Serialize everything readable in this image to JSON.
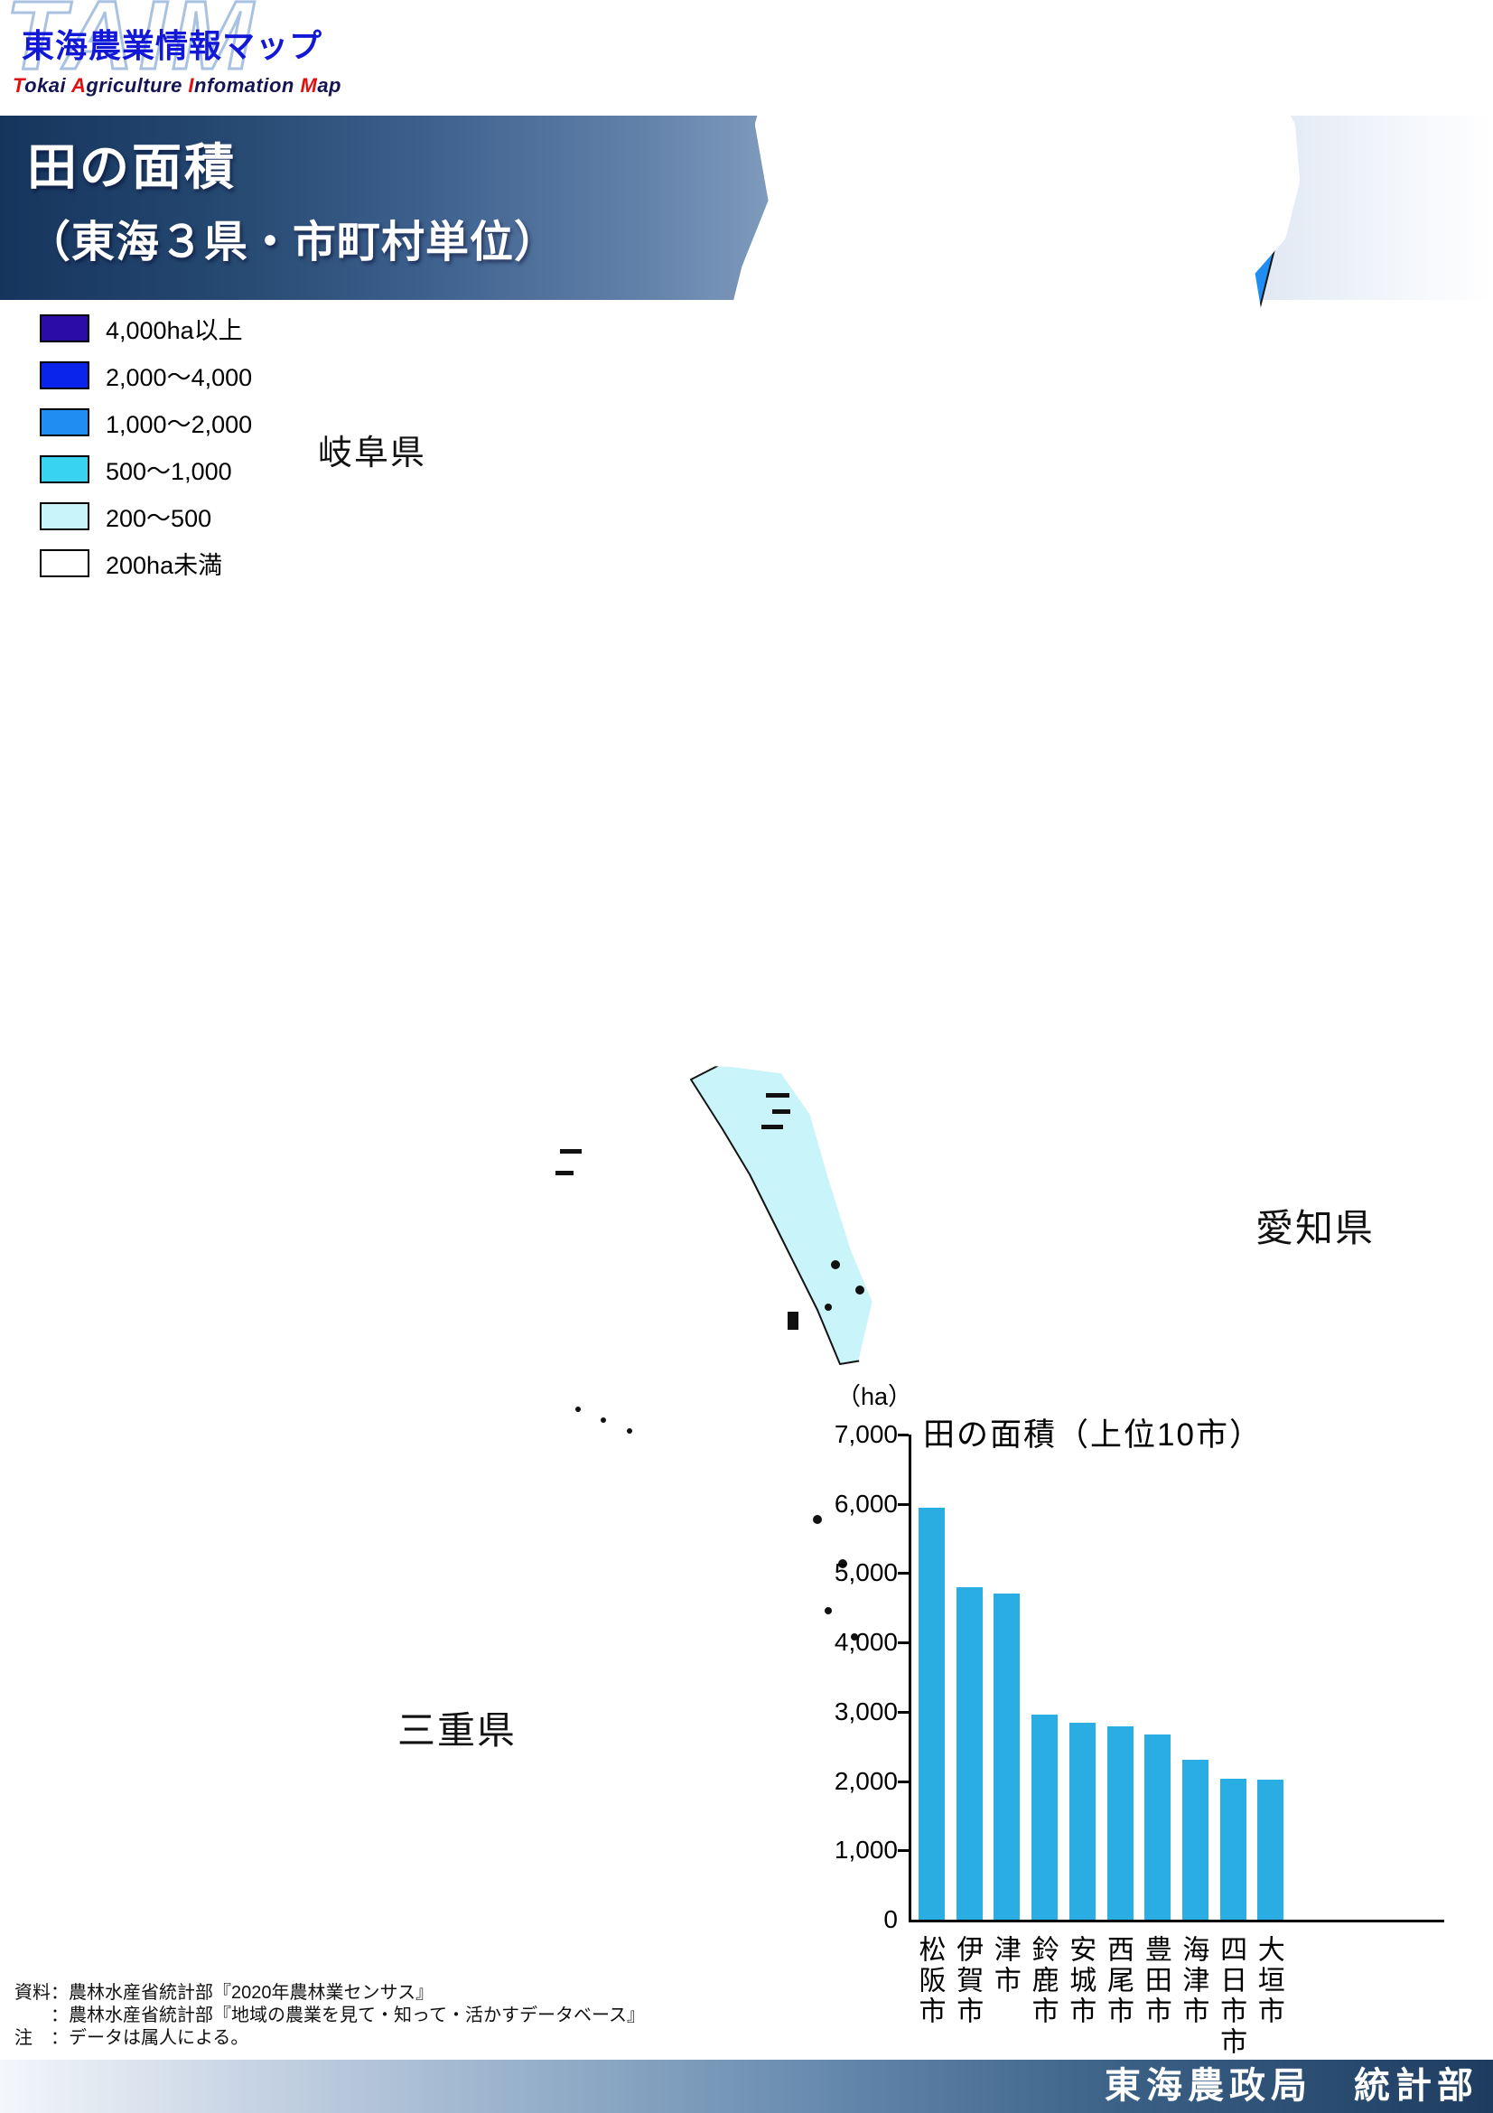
{
  "logo": {
    "watermark": "TAIM",
    "title": "東海農業情報マップ",
    "sub": {
      "w1l": "T",
      "w1r": "okai ",
      "w2l": "A",
      "w2r": "griculture ",
      "w3l": "I",
      "w3r": "nfomation ",
      "w4l": "M",
      "w4r": "ap"
    }
  },
  "banner": {
    "line1": "田の面積",
    "line2": "（東海３県・市町村単位）"
  },
  "legend": {
    "items": [
      {
        "label": "4,000ha以上",
        "color": "#2c0ca6"
      },
      {
        "label": "2,000～4,000",
        "color": "#0b24ec"
      },
      {
        "label": "1,000～2,000",
        "color": "#1f8df2"
      },
      {
        "label": "500～1,000",
        "color": "#38d3ef"
      },
      {
        "label": "200～500",
        "color": "#c9f4fa"
      },
      {
        "label": "200ha未満",
        "color": "#ffffff"
      }
    ]
  },
  "map": {
    "prefecture_labels": {
      "gifu": "岐阜県",
      "aichi": "愛知県",
      "mie": "三重県"
    }
  },
  "chart_data": {
    "type": "bar",
    "title": "田の面積（上位10市）",
    "unit_label": "（ha）",
    "categories": [
      "松阪市",
      "伊賀市",
      "津市",
      "鈴鹿市",
      "安城市",
      "西尾市",
      "豊田市",
      "海津市",
      "四日市市",
      "大垣市"
    ],
    "values": [
      5950,
      4800,
      4700,
      2960,
      2840,
      2790,
      2670,
      2310,
      2030,
      2020
    ],
    "xlabel": "",
    "ylabel": "（ha）",
    "ylim": [
      0,
      7000
    ],
    "ytick_interval": 1000,
    "bar_color": "#2aade3",
    "grid": false,
    "legend_position": "none"
  },
  "notes": {
    "line1": "資料：農林水産省統計部『2020年農林業センサス』",
    "line2": "　　：農林水産省統計部『地域の農業を見て・知って・活かすデータベース』",
    "line3": "注　：データは属人による。"
  },
  "footer": {
    "text": "東海農政局　統計部"
  }
}
